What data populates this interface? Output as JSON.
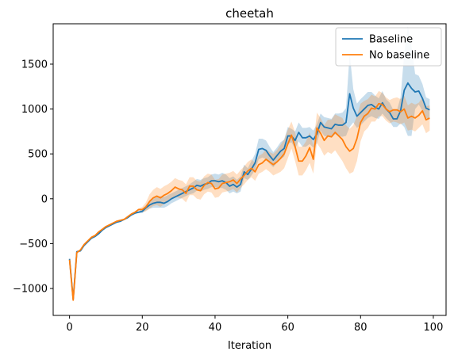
{
  "chart_data": {
    "type": "line",
    "title": "cheetah",
    "xlabel": "Iteration",
    "ylabel": "",
    "xlim": [
      -4.5,
      103.5
    ],
    "ylim": [
      -1300,
      1950
    ],
    "xticks": [
      0,
      20,
      40,
      60,
      80,
      100
    ],
    "yticks": [
      -1000,
      -500,
      0,
      500,
      1000,
      1500
    ],
    "xtick_labels": [
      "0",
      "20",
      "40",
      "60",
      "80",
      "100"
    ],
    "ytick_labels": [
      "−1000",
      "−500",
      "0",
      "500",
      "1000",
      "1500"
    ],
    "grid": false,
    "legend_position": "top-right",
    "series": [
      {
        "name": "Baseline",
        "color": "#1f77b4",
        "band_color": "#1f77b4",
        "x": [
          0,
          1,
          2,
          3,
          4,
          5,
          6,
          7,
          8,
          9,
          10,
          11,
          12,
          13,
          14,
          15,
          16,
          17,
          18,
          19,
          20,
          21,
          22,
          23,
          24,
          25,
          26,
          27,
          28,
          29,
          30,
          31,
          32,
          33,
          34,
          35,
          36,
          37,
          38,
          39,
          40,
          41,
          42,
          43,
          44,
          45,
          46,
          47,
          48,
          49,
          50,
          51,
          52,
          53,
          54,
          55,
          56,
          57,
          58,
          59,
          60,
          61,
          62,
          63,
          64,
          65,
          66,
          67,
          68,
          69,
          70,
          71,
          72,
          73,
          74,
          75,
          76,
          77,
          78,
          79,
          80,
          81,
          82,
          83,
          84,
          85,
          86,
          87,
          88,
          89,
          90,
          91,
          92,
          93,
          94,
          95,
          96,
          97,
          98,
          99
        ],
        "values": [
          -670,
          -1120,
          -590,
          -580,
          -520,
          -480,
          -440,
          -420,
          -390,
          -350,
          -320,
          -300,
          -280,
          -260,
          -250,
          -230,
          -210,
          -180,
          -160,
          -150,
          -140,
          -100,
          -70,
          -50,
          -40,
          -40,
          -50,
          -30,
          0,
          20,
          40,
          60,
          80,
          100,
          120,
          150,
          140,
          160,
          170,
          200,
          200,
          190,
          200,
          180,
          140,
          160,
          130,
          160,
          300,
          270,
          330,
          400,
          550,
          560,
          540,
          480,
          430,
          480,
          530,
          560,
          700,
          700,
          650,
          740,
          680,
          680,
          700,
          660,
          720,
          850,
          800,
          790,
          780,
          830,
          820,
          820,
          850,
          1170,
          1010,
          920,
          960,
          1000,
          1040,
          1050,
          1020,
          1000,
          1070,
          1000,
          960,
          890,
          890,
          980,
          1210,
          1290,
          1230,
          1190,
          1200,
          1120,
          1010,
          990
        ],
        "lower": [
          -680,
          -1120,
          -600,
          -590,
          -530,
          -490,
          -450,
          -430,
          -400,
          -360,
          -330,
          -310,
          -290,
          -270,
          -260,
          -240,
          -220,
          -190,
          -170,
          -160,
          -160,
          -130,
          -110,
          -100,
          -100,
          -100,
          -100,
          -80,
          -50,
          -30,
          -10,
          10,
          30,
          50,
          60,
          90,
          80,
          100,
          110,
          130,
          130,
          120,
          120,
          100,
          60,
          80,
          60,
          80,
          230,
          210,
          260,
          320,
          440,
          460,
          440,
          390,
          350,
          400,
          440,
          470,
          610,
          630,
          560,
          640,
          580,
          580,
          610,
          570,
          620,
          760,
          700,
          690,
          680,
          720,
          700,
          690,
          700,
          800,
          850,
          790,
          820,
          860,
          900,
          920,
          900,
          890,
          950,
          900,
          860,
          800,
          800,
          840,
          800,
          700,
          700,
          1000,
          1050,
          980,
          900,
          880
        ],
        "upper": [
          -660,
          -1110,
          -580,
          -570,
          -510,
          -470,
          -430,
          -410,
          -380,
          -340,
          -310,
          -290,
          -270,
          -250,
          -240,
          -220,
          -200,
          -170,
          -150,
          -140,
          -120,
          -70,
          -30,
          0,
          20,
          30,
          20,
          40,
          60,
          80,
          100,
          120,
          140,
          160,
          190,
          220,
          210,
          230,
          240,
          270,
          280,
          270,
          290,
          270,
          230,
          250,
          210,
          250,
          380,
          340,
          420,
          500,
          670,
          670,
          650,
          580,
          520,
          570,
          630,
          660,
          800,
          780,
          750,
          850,
          790,
          790,
          800,
          760,
          830,
          950,
          910,
          900,
          890,
          950,
          950,
          960,
          1010,
          1620,
          1220,
          1060,
          1110,
          1150,
          1190,
          1190,
          1150,
          1120,
          1200,
          1110,
          1070,
          990,
          990,
          1130,
          1620,
          1920,
          1700,
          1390,
          1370,
          1280,
          1130,
          1110
        ]
      },
      {
        "name": "No baseline",
        "color": "#ff7f0e",
        "band_color": "#ff7f0e",
        "x": [
          0,
          1,
          2,
          3,
          4,
          5,
          6,
          7,
          8,
          9,
          10,
          11,
          12,
          13,
          14,
          15,
          16,
          17,
          18,
          19,
          20,
          21,
          22,
          23,
          24,
          25,
          26,
          27,
          28,
          29,
          30,
          31,
          32,
          33,
          34,
          35,
          36,
          37,
          38,
          39,
          40,
          41,
          42,
          43,
          44,
          45,
          46,
          47,
          48,
          49,
          50,
          51,
          52,
          53,
          54,
          55,
          56,
          57,
          58,
          59,
          60,
          61,
          62,
          63,
          64,
          65,
          66,
          67,
          68,
          69,
          70,
          71,
          72,
          73,
          74,
          75,
          76,
          77,
          78,
          79,
          80,
          81,
          82,
          83,
          84,
          85,
          86,
          87,
          88,
          89,
          90,
          91,
          92,
          93,
          94,
          95,
          96,
          97,
          98,
          99
        ],
        "values": [
          -680,
          -1130,
          -600,
          -570,
          -510,
          -470,
          -430,
          -410,
          -370,
          -340,
          -310,
          -290,
          -270,
          -250,
          -240,
          -230,
          -200,
          -170,
          -150,
          -120,
          -120,
          -90,
          -30,
          10,
          30,
          10,
          40,
          60,
          90,
          130,
          110,
          100,
          60,
          140,
          140,
          100,
          90,
          150,
          180,
          170,
          110,
          120,
          170,
          180,
          190,
          210,
          170,
          220,
          260,
          310,
          340,
          300,
          380,
          400,
          440,
          410,
          380,
          410,
          450,
          500,
          610,
          710,
          580,
          420,
          420,
          480,
          570,
          440,
          790,
          730,
          650,
          700,
          690,
          740,
          700,
          660,
          580,
          530,
          560,
          670,
          850,
          920,
          950,
          1010,
          1000,
          1060,
          1050,
          1000,
          970,
          990,
          990,
          970,
          1000,
          900,
          920,
          900,
          930,
          980,
          880,
          900
        ],
        "lower": [
          -690,
          -1140,
          -610,
          -580,
          -520,
          -480,
          -440,
          -420,
          -380,
          -350,
          -320,
          -300,
          -280,
          -260,
          -250,
          -240,
          -210,
          -180,
          -160,
          -130,
          -150,
          -140,
          -110,
          -80,
          -70,
          -90,
          -60,
          -40,
          -10,
          30,
          10,
          0,
          -40,
          40,
          40,
          0,
          -10,
          50,
          80,
          70,
          10,
          20,
          70,
          80,
          90,
          110,
          70,
          120,
          160,
          210,
          240,
          200,
          280,
          300,
          330,
          300,
          260,
          280,
          300,
          340,
          450,
          560,
          420,
          260,
          260,
          320,
          400,
          280,
          620,
          560,
          480,
          520,
          500,
          540,
          480,
          420,
          340,
          280,
          300,
          420,
          640,
          750,
          790,
          860,
          860,
          920,
          920,
          870,
          840,
          860,
          850,
          830,
          850,
          760,
          770,
          750,
          790,
          830,
          730,
          760
        ],
        "upper": [
          -670,
          -1120,
          -590,
          -560,
          -500,
          -460,
          -420,
          -400,
          -360,
          -330,
          -300,
          -280,
          -260,
          -240,
          -230,
          -220,
          -190,
          -160,
          -140,
          -110,
          -90,
          -40,
          50,
          100,
          130,
          110,
          140,
          160,
          190,
          230,
          210,
          200,
          160,
          240,
          240,
          200,
          190,
          250,
          280,
          270,
          210,
          220,
          270,
          280,
          290,
          310,
          270,
          320,
          360,
          410,
          440,
          400,
          480,
          500,
          550,
          520,
          500,
          540,
          600,
          660,
          770,
          860,
          740,
          580,
          580,
          640,
          740,
          600,
          960,
          900,
          820,
          880,
          880,
          940,
          920,
          900,
          820,
          780,
          820,
          920,
          1060,
          1090,
          1110,
          1160,
          1140,
          1200,
          1180,
          1130,
          1100,
          1120,
          1130,
          1110,
          1150,
          1040,
          1070,
          1050,
          1070,
          1130,
          1030,
          1040
        ]
      }
    ]
  }
}
